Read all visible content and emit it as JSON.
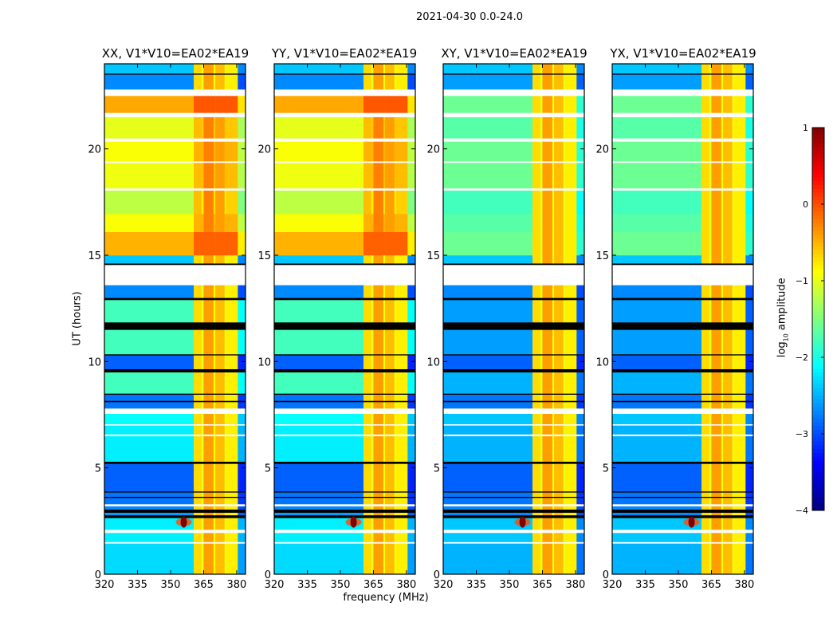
{
  "chart_data": {
    "type": "heatmap",
    "title": "2021-04-30 0.0-24.0",
    "xlabel": "frequency (MHz)",
    "ylabel": "UT (hours)",
    "xlim": [
      320,
      384
    ],
    "ylim": [
      0,
      24
    ],
    "xticks": [
      320,
      335,
      350,
      365,
      380
    ],
    "yticks": [
      0,
      5,
      10,
      15,
      20
    ],
    "panels": [
      {
        "title": "XX, V1*V10=EA02*EA19",
        "kind": "parallel"
      },
      {
        "title": "YY, V1*V10=EA02*EA19",
        "kind": "parallel"
      },
      {
        "title": "XY, V1*V10=EA02*EA19",
        "kind": "cross"
      },
      {
        "title": "YX, V1*V10=EA02*EA19",
        "kind": "cross"
      }
    ],
    "colorbar": {
      "label_prefix": "log",
      "label_sub": "10",
      "label_suffix": " amplitude",
      "range": [
        -4,
        1
      ],
      "ticks": [
        1,
        0,
        -1,
        -2,
        -3,
        -4
      ],
      "tick_labels": [
        "1",
        "0",
        "−1",
        "−2",
        "−3",
        "−4"
      ],
      "colormap": "jet"
    },
    "freq_segments": [
      {
        "f0": 320,
        "f1": 360.5,
        "kind": "band",
        "level": null
      },
      {
        "f0": 360.5,
        "f1": 364,
        "kind": "rfi",
        "level": -0.7
      },
      {
        "f0": 364,
        "f1": 365,
        "kind": "rfi",
        "level": -1.0
      },
      {
        "f0": 365,
        "f1": 369.5,
        "kind": "rfi",
        "level": -0.4
      },
      {
        "f0": 369.5,
        "f1": 370.3,
        "kind": "rfi",
        "level": -0.9
      },
      {
        "f0": 370.3,
        "f1": 374.5,
        "kind": "rfi",
        "level": -0.55
      },
      {
        "f0": 374.5,
        "f1": 375.2,
        "kind": "rfi",
        "level": -1.0
      },
      {
        "f0": 375.2,
        "f1": 380.5,
        "kind": "rfi",
        "level": -0.8
      },
      {
        "f0": 380.5,
        "f1": 384,
        "kind": "edge",
        "level": null
      }
    ],
    "time_blocks": [
      {
        "t0": 0,
        "t1": 1.45,
        "parallel": -2.3,
        "cross": -2.5
      },
      {
        "t0": 1.45,
        "t1": 1.52,
        "flag": "white"
      },
      {
        "t0": 1.52,
        "t1": 1.95,
        "parallel": -2.2,
        "cross": -2.4
      },
      {
        "t0": 1.95,
        "t1": 2.1,
        "flag": "white"
      },
      {
        "t0": 2.1,
        "t1": 2.65,
        "parallel": -2.2,
        "cross": -2.4
      },
      {
        "t0": 2.65,
        "t1": 2.78,
        "flag": "black"
      },
      {
        "t0": 2.78,
        "t1": 2.9,
        "parallel": -2.6,
        "cross": -2.7
      },
      {
        "t0": 2.9,
        "t1": 3.05,
        "flag": "black"
      },
      {
        "t0": 3.05,
        "t1": 3.2,
        "parallel": -2.7,
        "cross": -2.7
      },
      {
        "t0": 3.2,
        "t1": 3.3,
        "flag": "white"
      },
      {
        "t0": 3.3,
        "t1": 3.6,
        "parallel": -2.8,
        "cross": -2.8
      },
      {
        "t0": 3.6,
        "t1": 3.65,
        "flag": "black"
      },
      {
        "t0": 3.65,
        "t1": 3.85,
        "parallel": -2.8,
        "cross": -2.8
      },
      {
        "t0": 3.85,
        "t1": 3.9,
        "flag": "black"
      },
      {
        "t0": 3.9,
        "t1": 5.2,
        "parallel": -2.9,
        "cross": -2.9
      },
      {
        "t0": 5.2,
        "t1": 5.3,
        "flag": "black"
      },
      {
        "t0": 5.3,
        "t1": 6.5,
        "parallel": -2.2,
        "cross": -2.5
      },
      {
        "t0": 6.5,
        "t1": 6.58,
        "flag": "white"
      },
      {
        "t0": 6.58,
        "t1": 7.0,
        "parallel": -2.2,
        "cross": -2.5
      },
      {
        "t0": 7.0,
        "t1": 7.06,
        "flag": "white"
      },
      {
        "t0": 7.06,
        "t1": 7.55,
        "parallel": -2.1,
        "cross": -2.4
      },
      {
        "t0": 7.55,
        "t1": 7.8,
        "flag": "white"
      },
      {
        "t0": 7.8,
        "t1": 8.1,
        "parallel": -2.8,
        "cross": -2.8
      },
      {
        "t0": 8.1,
        "t1": 8.16,
        "flag": "black"
      },
      {
        "t0": 8.16,
        "t1": 8.45,
        "parallel": -2.8,
        "cross": -2.8
      },
      {
        "t0": 8.45,
        "t1": 8.5,
        "flag": "black"
      },
      {
        "t0": 8.5,
        "t1": 9.5,
        "parallel": -1.8,
        "cross": -2.5
      },
      {
        "t0": 9.5,
        "t1": 9.65,
        "flag": "black"
      },
      {
        "t0": 9.65,
        "t1": 10.3,
        "parallel": -2.9,
        "cross": -2.9
      },
      {
        "t0": 10.3,
        "t1": 10.35,
        "flag": "black"
      },
      {
        "t0": 10.35,
        "t1": 11.5,
        "parallel": -1.8,
        "cross": -2.6
      },
      {
        "t0": 11.5,
        "t1": 11.85,
        "flag": "black"
      },
      {
        "t0": 11.85,
        "t1": 12.9,
        "parallel": -1.8,
        "cross": -2.6
      },
      {
        "t0": 12.9,
        "t1": 13.0,
        "flag": "black"
      },
      {
        "t0": 13.0,
        "t1": 13.6,
        "parallel": -2.7,
        "cross": -2.7
      },
      {
        "t0": 13.6,
        "t1": 14.55,
        "flag": "white"
      },
      {
        "t0": 14.55,
        "t1": 14.62,
        "flag": "black"
      },
      {
        "t0": 14.62,
        "t1": 15.0,
        "parallel": -2.4,
        "cross": -2.4
      },
      {
        "t0": 15.0,
        "t1": 16.1,
        "parallel": -0.5,
        "cross": -1.6
      },
      {
        "t0": 16.1,
        "t1": 16.95,
        "parallel": -0.9,
        "cross": -1.7
      },
      {
        "t0": 16.95,
        "t1": 18.05,
        "parallel": -1.2,
        "cross": -1.8
      },
      {
        "t0": 18.05,
        "t1": 18.15,
        "flag": "white"
      },
      {
        "t0": 18.15,
        "t1": 19.35,
        "parallel": -0.95,
        "cross": -1.6
      },
      {
        "t0": 19.35,
        "t1": 19.42,
        "flag": "white"
      },
      {
        "t0": 19.42,
        "t1": 20.35,
        "parallel": -0.9,
        "cross": -1.6
      },
      {
        "t0": 20.35,
        "t1": 20.5,
        "flag": "white"
      },
      {
        "t0": 20.5,
        "t1": 21.5,
        "parallel": -1.0,
        "cross": -1.7
      },
      {
        "t0": 21.5,
        "t1": 21.7,
        "flag": "white"
      },
      {
        "t0": 21.7,
        "t1": 22.5,
        "parallel": -0.45,
        "cross": -1.6
      },
      {
        "t0": 22.5,
        "t1": 22.8,
        "flag": "white"
      },
      {
        "t0": 22.8,
        "t1": 23.5,
        "parallel": -2.7,
        "cross": -2.6
      },
      {
        "t0": 23.5,
        "t1": 23.55,
        "flag": "black"
      },
      {
        "t0": 23.55,
        "t1": 24,
        "parallel": -2.4,
        "cross": -2.4
      }
    ],
    "sources": [
      {
        "freq": 356,
        "t": 2.45,
        "level": 1.0
      }
    ],
    "colors": {
      "axes": "#000000",
      "flag_white": "#ffffff",
      "flag_black": "#000000"
    }
  }
}
